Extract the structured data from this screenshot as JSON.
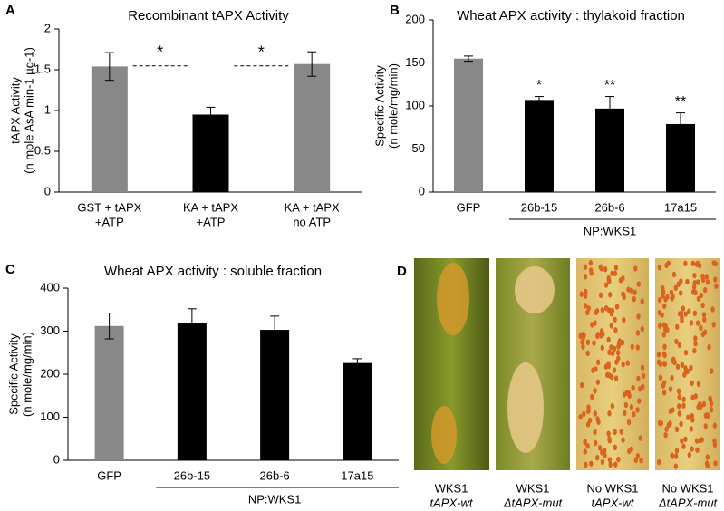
{
  "chart_data": [
    {
      "type": "bar",
      "title": "Recombinant tAPX Activity",
      "y_label": [
        "tAPX Activity",
        "(n mole AsA min-1 µg-1)"
      ],
      "categories": [
        [
          "GST + tAPX",
          "+ATP"
        ],
        [
          "KA + tAPX",
          "+ATP"
        ],
        [
          "KA + tAPX",
          "no ATP"
        ]
      ],
      "values": [
        1.54,
        0.95,
        1.57
      ],
      "errors": [
        0.17,
        0.09,
        0.15
      ],
      "colors": [
        "#888888",
        "#000000",
        "#888888"
      ],
      "comparisons": [
        "*",
        "*"
      ],
      "ylim": [
        0,
        2
      ],
      "yticks": [
        0,
        0.5,
        1,
        1.5,
        2
      ]
    },
    {
      "type": "bar",
      "title": "Wheat APX activity : thylakoid fraction",
      "y_label": [
        "Specific Activity",
        "(n mole/mg/min)"
      ],
      "categories": [
        [
          "GFP"
        ],
        [
          "26b-15"
        ],
        [
          "26b-6"
        ],
        [
          "17a15"
        ]
      ],
      "values": [
        155,
        107,
        97,
        79
      ],
      "errors": [
        3,
        4,
        14,
        13
      ],
      "colors": [
        "#888888",
        "#000000",
        "#000000",
        "#000000"
      ],
      "markers": [
        null,
        "*",
        "**",
        "**"
      ],
      "group_label": "NP:WKS1",
      "ylim": [
        0,
        200
      ],
      "yticks": [
        0,
        50,
        100,
        150,
        200
      ]
    },
    {
      "type": "bar",
      "title": "Wheat APX activity : soluble fraction",
      "y_label": [
        "Specific Activity",
        "(n mole/mg/min)"
      ],
      "categories": [
        [
          "GFP"
        ],
        [
          "26b-15"
        ],
        [
          "26b-6"
        ],
        [
          "17a15"
        ]
      ],
      "values": [
        312,
        320,
        303,
        226
      ],
      "errors": [
        30,
        32,
        32,
        10
      ],
      "colors": [
        "#888888",
        "#000000",
        "#000000",
        "#000000"
      ],
      "group_label": "NP:WKS1",
      "ylim": [
        0,
        400
      ],
      "yticks": [
        0,
        100,
        200,
        300,
        400
      ]
    }
  ],
  "panel_labels": [
    "A",
    "B",
    "C",
    "D"
  ],
  "photos": [
    {
      "line1": "WKS1",
      "line2": "tAPX-wt"
    },
    {
      "line1": "WKS1",
      "line2": "ΔtAPX-mut"
    },
    {
      "line1": "No WKS1",
      "line2": "tAPX-wt"
    },
    {
      "line1": "No WKS1",
      "line2": "ΔtAPX-mut"
    }
  ]
}
